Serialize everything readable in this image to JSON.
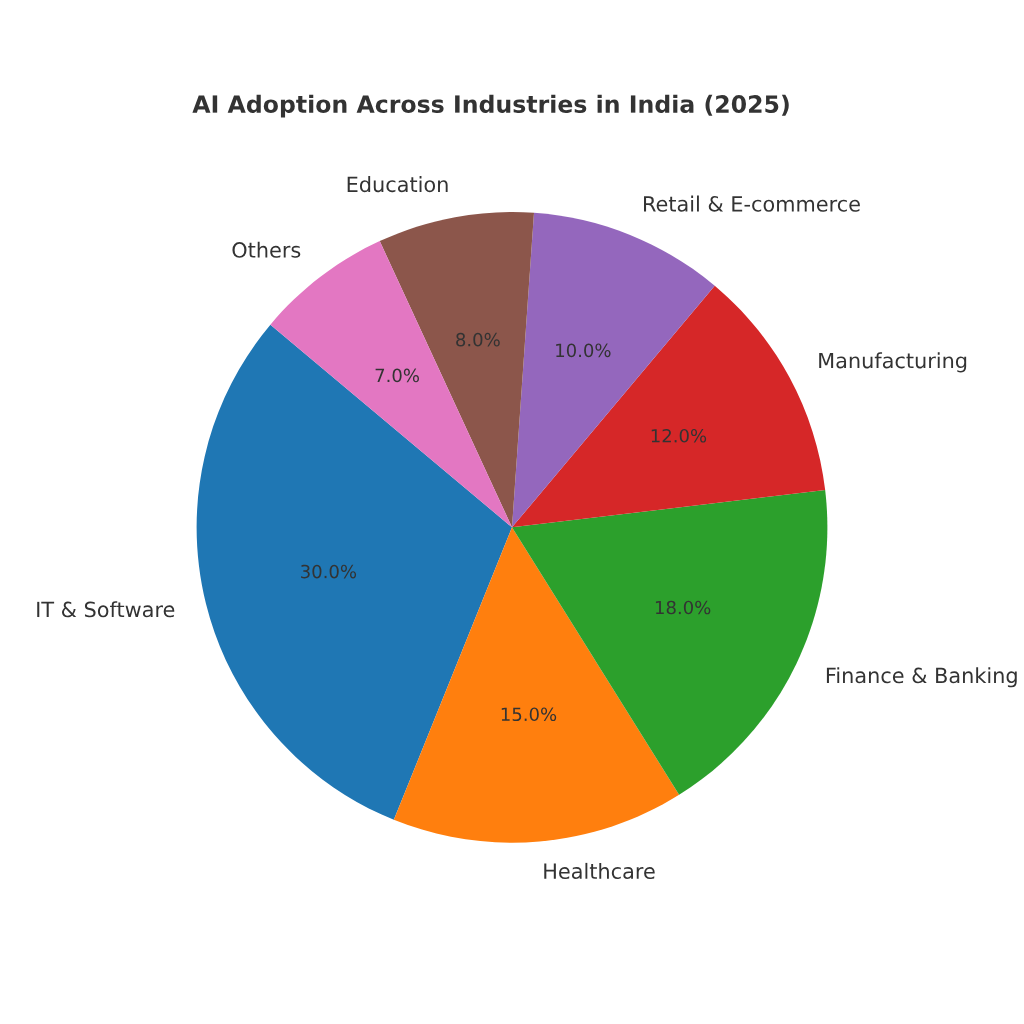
{
  "chart_data": {
    "type": "pie",
    "title": "AI Adoption Across Industries in India (2025)",
    "categories": [
      "IT & Software",
      "Healthcare",
      "Finance & Banking",
      "Manufacturing",
      "Retail & E-commerce",
      "Education",
      "Others"
    ],
    "values": [
      30,
      15,
      18,
      12,
      10,
      8,
      7
    ],
    "colors": [
      "#1f77b4",
      "#ff7f0e",
      "#2ca02c",
      "#d62728",
      "#9467bd",
      "#8c564b",
      "#e377c2"
    ],
    "value_labels": [
      "30.0%",
      "15.0%",
      "18.0%",
      "12.0%",
      "10.0%",
      "8.0%",
      "7.0%"
    ]
  }
}
